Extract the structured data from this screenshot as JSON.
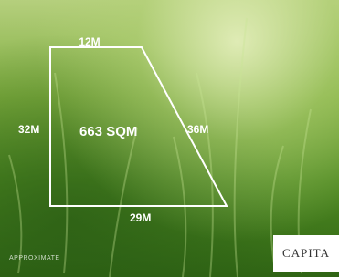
{
  "plot": {
    "area": "663 SQM",
    "sides": {
      "top": "12M",
      "left": "32M",
      "right": "36M",
      "bottom": "29M"
    }
  },
  "footer": {
    "note": "APPROXIMATE",
    "logo": "CAPITA"
  }
}
